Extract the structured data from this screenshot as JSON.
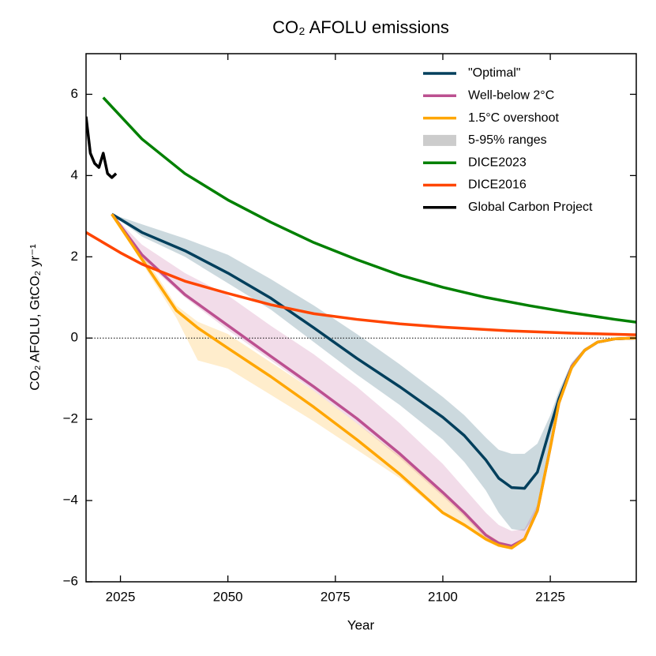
{
  "chart_data": {
    "type": "line",
    "title": "CO₂ AFOLU emissions",
    "x_label": "Year",
    "y_label": "CO₂ AFOLU, GtCO₂ yr⁻¹",
    "xlim": [
      2017,
      2145
    ],
    "ylim": [
      -6,
      7
    ],
    "xticks": [
      2025,
      2050,
      2075,
      2100,
      2125
    ],
    "yticks": [
      {
        "value": -6,
        "label": "−6"
      },
      {
        "value": -4,
        "label": "−4"
      },
      {
        "value": -2,
        "label": "−2"
      },
      0,
      2,
      4,
      6
    ],
    "zero_line": true,
    "legend": "upper right",
    "range_label": "5-95% ranges",
    "range_color": "#cccccc",
    "series": [
      {
        "name": "\"Optimal\"",
        "color": "#003f5c",
        "x": [
          2023,
          2030,
          2040,
          2050,
          2060,
          2070,
          2080,
          2090,
          2100,
          2105,
          2110,
          2113,
          2116,
          2119,
          2122,
          2125,
          2127,
          2130,
          2133,
          2136,
          2140,
          2145
        ],
        "values": [
          3.05,
          2.6,
          2.15,
          1.6,
          0.98,
          0.25,
          -0.5,
          -1.2,
          -1.95,
          -2.4,
          -3.0,
          -3.45,
          -3.68,
          -3.7,
          -3.3,
          -2.2,
          -1.5,
          -0.7,
          -0.3,
          -0.1,
          -0.02,
          0
        ],
        "upper": [
          3.05,
          2.8,
          2.45,
          2.05,
          1.45,
          0.8,
          0.1,
          -0.65,
          -1.45,
          -1.9,
          -2.45,
          -2.75,
          -2.85,
          -2.85,
          -2.6,
          -1.9,
          -1.3,
          -0.6,
          -0.25,
          -0.08,
          -0.01,
          0
        ],
        "lower": [
          3.05,
          2.5,
          2.0,
          1.35,
          0.7,
          -0.1,
          -0.9,
          -1.65,
          -2.5,
          -3.05,
          -3.75,
          -4.3,
          -4.7,
          -4.75,
          -4.3,
          -2.7,
          -1.7,
          -0.8,
          -0.35,
          -0.12,
          -0.03,
          0
        ]
      },
      {
        "name": "Well-below 2°C",
        "color": "#bc5090",
        "x": [
          2023,
          2030,
          2040,
          2050,
          2060,
          2070,
          2080,
          2090,
          2100,
          2105,
          2110,
          2113,
          2116,
          2119,
          2122,
          2125,
          2127,
          2130,
          2133,
          2136,
          2140,
          2145
        ],
        "values": [
          3.05,
          2.05,
          1.07,
          0.31,
          -0.45,
          -1.2,
          -1.98,
          -2.85,
          -3.8,
          -4.3,
          -4.85,
          -5.05,
          -5.12,
          -4.95,
          -4.25,
          -2.7,
          -1.6,
          -0.7,
          -0.3,
          -0.1,
          -0.02,
          0
        ],
        "upper": [
          3.05,
          2.3,
          1.6,
          1.05,
          0.3,
          -0.4,
          -1.2,
          -2.1,
          -3.1,
          -3.7,
          -4.3,
          -4.6,
          -4.75,
          -4.7,
          -4.1,
          -2.6,
          -1.5,
          -0.65,
          -0.28,
          -0.09,
          -0.02,
          0
        ],
        "lower": [
          3.05,
          1.95,
          1.0,
          0.2,
          -0.55,
          -1.3,
          -2.1,
          -2.95,
          -3.9,
          -4.4,
          -4.95,
          -5.1,
          -5.15,
          -5.0,
          -4.3,
          -2.75,
          -1.65,
          -0.72,
          -0.31,
          -0.1,
          -0.02,
          0
        ]
      },
      {
        "name": "1.5°C overshoot",
        "color": "#ffa600",
        "x": [
          2023,
          2030,
          2038,
          2043,
          2050,
          2060,
          2070,
          2080,
          2090,
          2100,
          2105,
          2110,
          2113,
          2116,
          2119,
          2122,
          2125,
          2127,
          2130,
          2133,
          2136,
          2140,
          2145
        ],
        "values": [
          3.05,
          1.94,
          0.68,
          0.25,
          -0.25,
          -0.95,
          -1.7,
          -2.5,
          -3.35,
          -4.3,
          -4.6,
          -4.95,
          -5.1,
          -5.17,
          -4.95,
          -4.25,
          -2.7,
          -1.6,
          -0.72,
          -0.3,
          -0.1,
          -0.02,
          0
        ],
        "upper": [
          3.05,
          2.1,
          0.8,
          0.4,
          0.1,
          -0.6,
          -1.3,
          -2.1,
          -2.9,
          -3.8,
          -4.3,
          -4.8,
          -5.0,
          -5.1,
          -4.9,
          -4.2,
          -2.65,
          -1.55,
          -0.7,
          -0.29,
          -0.09,
          -0.02,
          0
        ],
        "lower": [
          3.05,
          1.85,
          0.5,
          -0.55,
          -0.75,
          -1.4,
          -2.05,
          -2.75,
          -3.45,
          -4.35,
          -4.65,
          -5.0,
          -5.15,
          -5.2,
          -5.0,
          -4.3,
          -2.75,
          -1.65,
          -0.74,
          -0.31,
          -0.1,
          -0.02,
          0
        ]
      },
      {
        "name": "DICE2023",
        "color": "#008000",
        "x": [
          2021,
          2030,
          2040,
          2050,
          2060,
          2070,
          2080,
          2090,
          2100,
          2110,
          2120,
          2130,
          2140,
          2145
        ],
        "values": [
          5.92,
          4.9,
          4.05,
          3.4,
          2.85,
          2.35,
          1.93,
          1.55,
          1.25,
          1.0,
          0.8,
          0.62,
          0.46,
          0.39
        ]
      },
      {
        "name": "DICE2016",
        "color": "#ff4500",
        "x": [
          2017,
          2025,
          2030,
          2040,
          2050,
          2060,
          2070,
          2080,
          2090,
          2100,
          2115,
          2130,
          2145
        ],
        "values": [
          2.6,
          2.1,
          1.82,
          1.4,
          1.1,
          0.82,
          0.6,
          0.46,
          0.35,
          0.27,
          0.18,
          0.12,
          0.08
        ]
      },
      {
        "name": "Global Carbon Project",
        "color": "#000000",
        "x": [
          2017,
          2018,
          2019,
          2020,
          2021,
          2022,
          2023,
          2024
        ],
        "values": [
          5.45,
          4.55,
          4.3,
          4.2,
          4.55,
          4.05,
          3.95,
          4.05
        ]
      }
    ]
  }
}
